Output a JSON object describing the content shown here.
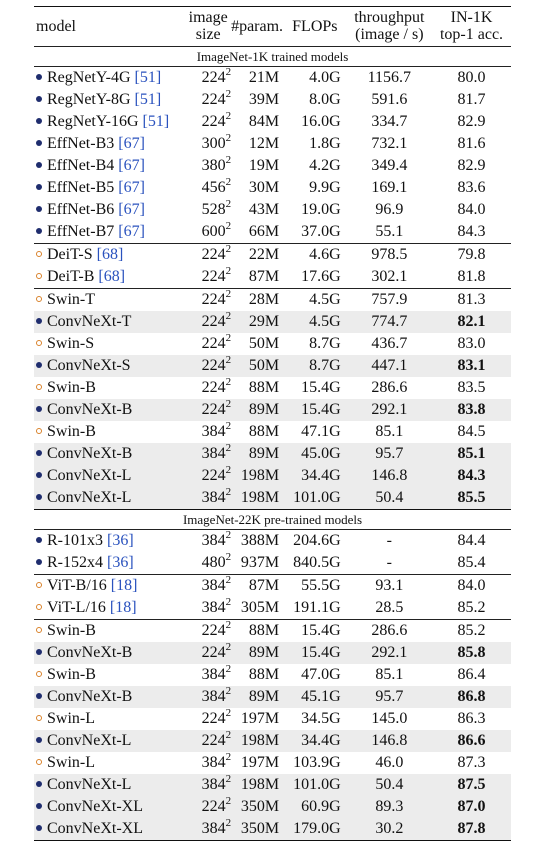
{
  "headers": {
    "model": "model",
    "image_size_1": "image",
    "image_size_2": "size",
    "params": "#param.",
    "flops": "FLOPs",
    "throughput_1": "throughput",
    "throughput_2": "(image / s)",
    "acc_1": "IN-1K",
    "acc_2": "top-1 acc."
  },
  "sections": [
    {
      "title": "ImageNet-1K trained models",
      "groups": [
        [
          {
            "marker": "filled",
            "name": "RegNetY-4G ",
            "ref": "[51]",
            "size": "224",
            "params": "21M",
            "flops": "4.0G",
            "throughput": "1156.7",
            "acc": "80.0",
            "bold": false,
            "shade": false
          },
          {
            "marker": "filled",
            "name": "RegNetY-8G ",
            "ref": "[51]",
            "size": "224",
            "params": "39M",
            "flops": "8.0G",
            "throughput": "591.6",
            "acc": "81.7",
            "bold": false,
            "shade": false
          },
          {
            "marker": "filled",
            "name": "RegNetY-16G ",
            "ref": "[51]",
            "size": "224",
            "params": "84M",
            "flops": "16.0G",
            "throughput": "334.7",
            "acc": "82.9",
            "bold": false,
            "shade": false
          },
          {
            "marker": "filled",
            "name": "EffNet-B3 ",
            "ref": "[67]",
            "size": "300",
            "params": "12M",
            "flops": "1.8G",
            "throughput": "732.1",
            "acc": "81.6",
            "bold": false,
            "shade": false
          },
          {
            "marker": "filled",
            "name": "EffNet-B4 ",
            "ref": "[67]",
            "size": "380",
            "params": "19M",
            "flops": "4.2G",
            "throughput": "349.4",
            "acc": "82.9",
            "bold": false,
            "shade": false
          },
          {
            "marker": "filled",
            "name": "EffNet-B5 ",
            "ref": "[67]",
            "size": "456",
            "params": "30M",
            "flops": "9.9G",
            "throughput": "169.1",
            "acc": "83.6",
            "bold": false,
            "shade": false
          },
          {
            "marker": "filled",
            "name": "EffNet-B6 ",
            "ref": "[67]",
            "size": "528",
            "params": "43M",
            "flops": "19.0G",
            "throughput": "96.9",
            "acc": "84.0",
            "bold": false,
            "shade": false
          },
          {
            "marker": "filled",
            "name": "EffNet-B7 ",
            "ref": "[67]",
            "size": "600",
            "params": "66M",
            "flops": "37.0G",
            "throughput": "55.1",
            "acc": "84.3",
            "bold": false,
            "shade": false
          }
        ],
        [
          {
            "marker": "hollow",
            "name": "DeiT-S ",
            "ref": "[68]",
            "size": "224",
            "params": "22M",
            "flops": "4.6G",
            "throughput": "978.5",
            "acc": "79.8",
            "bold": false,
            "shade": false
          },
          {
            "marker": "hollow",
            "name": "DeiT-B ",
            "ref": "[68]",
            "size": "224",
            "params": "87M",
            "flops": "17.6G",
            "throughput": "302.1",
            "acc": "81.8",
            "bold": false,
            "shade": false
          }
        ],
        [
          {
            "marker": "hollow",
            "name": "Swin-T",
            "ref": "",
            "size": "224",
            "params": "28M",
            "flops": "4.5G",
            "throughput": "757.9",
            "acc": "81.3",
            "bold": false,
            "shade": false
          },
          {
            "marker": "filled",
            "name": "ConvNeXt-T",
            "ref": "",
            "size": "224",
            "params": "29M",
            "flops": "4.5G",
            "throughput": "774.7",
            "acc": "82.1",
            "bold": true,
            "shade": true
          },
          {
            "marker": "hollow",
            "name": "Swin-S",
            "ref": "",
            "size": "224",
            "params": "50M",
            "flops": "8.7G",
            "throughput": "436.7",
            "acc": "83.0",
            "bold": false,
            "shade": false
          },
          {
            "marker": "filled",
            "name": "ConvNeXt-S",
            "ref": "",
            "size": "224",
            "params": "50M",
            "flops": "8.7G",
            "throughput": "447.1",
            "acc": "83.1",
            "bold": true,
            "shade": true
          },
          {
            "marker": "hollow",
            "name": "Swin-B",
            "ref": "",
            "size": "224",
            "params": "88M",
            "flops": "15.4G",
            "throughput": "286.6",
            "acc": "83.5",
            "bold": false,
            "shade": false
          },
          {
            "marker": "filled",
            "name": "ConvNeXt-B",
            "ref": "",
            "size": "224",
            "params": "89M",
            "flops": "15.4G",
            "throughput": "292.1",
            "acc": "83.8",
            "bold": true,
            "shade": true
          },
          {
            "marker": "hollow",
            "name": "Swin-B",
            "ref": "",
            "size": "384",
            "params": "88M",
            "flops": "47.1G",
            "throughput": "85.1",
            "acc": "84.5",
            "bold": false,
            "shade": false
          },
          {
            "marker": "filled",
            "name": "ConvNeXt-B",
            "ref": "",
            "size": "384",
            "params": "89M",
            "flops": "45.0G",
            "throughput": "95.7",
            "acc": "85.1",
            "bold": true,
            "shade": true
          },
          {
            "marker": "filled",
            "name": "ConvNeXt-L",
            "ref": "",
            "size": "224",
            "params": "198M",
            "flops": "34.4G",
            "throughput": "146.8",
            "acc": "84.3",
            "bold": true,
            "shade": true
          },
          {
            "marker": "filled",
            "name": "ConvNeXt-L",
            "ref": "",
            "size": "384",
            "params": "198M",
            "flops": "101.0G",
            "throughput": "50.4",
            "acc": "85.5",
            "bold": true,
            "shade": true
          }
        ]
      ]
    },
    {
      "title": "ImageNet-22K pre-trained models",
      "groups": [
        [
          {
            "marker": "filled",
            "name": "R-101x3 ",
            "ref": "[36]",
            "size": "384",
            "params": "388M",
            "flops": "204.6G",
            "throughput": "-",
            "acc": "84.4",
            "bold": false,
            "shade": false
          },
          {
            "marker": "filled",
            "name": "R-152x4 ",
            "ref": "[36]",
            "size": "480",
            "params": "937M",
            "flops": "840.5G",
            "throughput": "-",
            "acc": "85.4",
            "bold": false,
            "shade": false
          }
        ],
        [
          {
            "marker": "hollow",
            "name": "ViT-B/16 ",
            "ref": "[18]",
            "size": "384",
            "params": "87M",
            "flops": "55.5G",
            "throughput": "93.1",
            "acc": "84.0",
            "bold": false,
            "shade": false
          },
          {
            "marker": "hollow",
            "name": "ViT-L/16 ",
            "ref": "[18]",
            "size": "384",
            "params": "305M",
            "flops": "191.1G",
            "throughput": "28.5",
            "acc": "85.2",
            "bold": false,
            "shade": false
          }
        ],
        [
          {
            "marker": "hollow",
            "name": "Swin-B",
            "ref": "",
            "size": "224",
            "params": "88M",
            "flops": "15.4G",
            "throughput": "286.6",
            "acc": "85.2",
            "bold": false,
            "shade": false
          },
          {
            "marker": "filled",
            "name": "ConvNeXt-B",
            "ref": "",
            "size": "224",
            "params": "89M",
            "flops": "15.4G",
            "throughput": "292.1",
            "acc": "85.8",
            "bold": true,
            "shade": true
          },
          {
            "marker": "hollow",
            "name": "Swin-B",
            "ref": "",
            "size": "384",
            "params": "88M",
            "flops": "47.0G",
            "throughput": "85.1",
            "acc": "86.4",
            "bold": false,
            "shade": false
          },
          {
            "marker": "filled",
            "name": "ConvNeXt-B",
            "ref": "",
            "size": "384",
            "params": "89M",
            "flops": "45.1G",
            "throughput": "95.7",
            "acc": "86.8",
            "bold": true,
            "shade": true
          },
          {
            "marker": "hollow",
            "name": "Swin-L",
            "ref": "",
            "size": "224",
            "params": "197M",
            "flops": "34.5G",
            "throughput": "145.0",
            "acc": "86.3",
            "bold": false,
            "shade": false
          },
          {
            "marker": "filled",
            "name": "ConvNeXt-L",
            "ref": "",
            "size": "224",
            "params": "198M",
            "flops": "34.4G",
            "throughput": "146.8",
            "acc": "86.6",
            "bold": true,
            "shade": true
          },
          {
            "marker": "hollow",
            "name": "Swin-L",
            "ref": "",
            "size": "384",
            "params": "197M",
            "flops": "103.9G",
            "throughput": "46.0",
            "acc": "87.3",
            "bold": false,
            "shade": false
          },
          {
            "marker": "filled",
            "name": "ConvNeXt-L",
            "ref": "",
            "size": "384",
            "params": "198M",
            "flops": "101.0G",
            "throughput": "50.4",
            "acc": "87.5",
            "bold": true,
            "shade": true
          },
          {
            "marker": "filled",
            "name": "ConvNeXt-XL",
            "ref": "",
            "size": "224",
            "params": "350M",
            "flops": "60.9G",
            "throughput": "89.3",
            "acc": "87.0",
            "bold": true,
            "shade": true
          },
          {
            "marker": "filled",
            "name": "ConvNeXt-XL",
            "ref": "",
            "size": "384",
            "params": "350M",
            "flops": "179.0G",
            "throughput": "30.2",
            "acc": "87.8",
            "bold": true,
            "shade": true
          }
        ]
      ]
    }
  ],
  "superscript": "2",
  "colors": {
    "filled_marker": "#1f2d6e",
    "hollow_marker": "#d9822b",
    "ref_link": "#2a52be",
    "shade": "#ececec"
  }
}
